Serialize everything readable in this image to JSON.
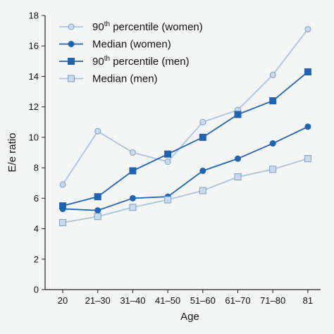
{
  "chart_data": {
    "type": "line",
    "categories": [
      "20",
      "21–30",
      "31–40",
      "41–50",
      "51–60",
      "61–70",
      "71–80",
      "81"
    ],
    "xlabel": "Age",
    "ylabel": "E/e ratio",
    "ylim": [
      0,
      18
    ],
    "yticks": [
      "0",
      "2",
      "4",
      "6",
      "8",
      "10",
      "12",
      "14",
      "16",
      "18"
    ],
    "grid": false,
    "legend_position": "top-left",
    "series": [
      {
        "name_main": "90",
        "name_sup": "th",
        "name_rest": " percentile (women)",
        "marker": "circle",
        "line_color": "#a9c3e1",
        "marker_fill": "#c9d9ee",
        "marker_stroke": "#7f9ec4",
        "values": [
          6.9,
          10.4,
          9.0,
          8.4,
          11.0,
          11.8,
          14.1,
          17.1
        ]
      },
      {
        "name_main": "Median (women)",
        "name_sup": "",
        "name_rest": "",
        "marker": "circle",
        "line_color": "#1f63b4",
        "marker_fill": "#1f63b4",
        "marker_stroke": "#1f63b4",
        "values": [
          5.3,
          5.2,
          6.0,
          6.1,
          7.8,
          8.6,
          9.6,
          10.7
        ]
      },
      {
        "name_main": "90",
        "name_sup": "th",
        "name_rest": " percentile (men)",
        "marker": "square",
        "line_color": "#1f63b4",
        "marker_fill": "#1f63b4",
        "marker_stroke": "#1f63b4",
        "values": [
          5.5,
          6.1,
          7.8,
          8.9,
          10.0,
          11.5,
          12.4,
          14.3
        ]
      },
      {
        "name_main": "Median (men)",
        "name_sup": "",
        "name_rest": "",
        "marker": "square",
        "line_color": "#a9c3e1",
        "marker_fill": "#c9d9ee",
        "marker_stroke": "#7f9ec4",
        "values": [
          4.4,
          4.8,
          5.4,
          5.9,
          6.5,
          7.4,
          7.9,
          8.6
        ]
      }
    ]
  }
}
